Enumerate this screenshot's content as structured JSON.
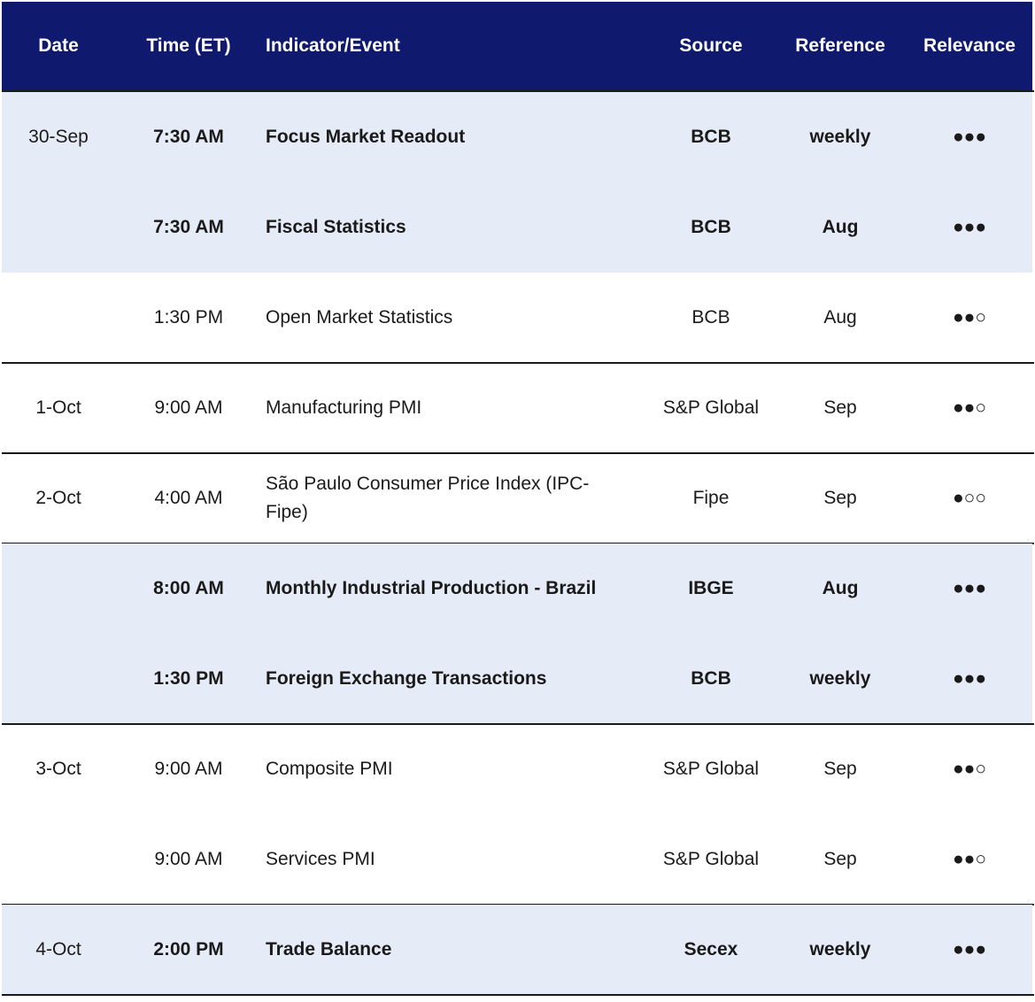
{
  "header": [
    "Date",
    "Time (ET)",
    "Indicator/Event",
    "Source",
    "Reference",
    "Relevance"
  ],
  "rows": [
    [
      "30-Sep",
      "7:30 AM",
      "Focus Market Readout",
      "BCB",
      "weekly",
      "●●●"
    ],
    [
      null,
      "7:30 AM",
      "Fiscal Statistics",
      "BCB",
      "Aug",
      "●●●"
    ],
    [
      null,
      "1:30 PM",
      "Open Market Statistics",
      "BCB",
      "Aug",
      "●●○"
    ],
    [
      "1-Oct",
      "9:00 AM",
      "Manufacturing PMI",
      "S&P Global",
      "Sep",
      "●●○"
    ],
    [
      "2-Oct",
      "4:00 AM",
      "São Paulo Consumer Price Index (IPC-Fipe)",
      "Fipe",
      "Sep",
      "●○○"
    ],
    [
      null,
      "8:00 AM",
      "Monthly Industrial Production - Brazil",
      "IBGE",
      "Aug",
      "●●●"
    ],
    [
      null,
      "1:30 PM",
      "Foreign Exchange Transactions",
      "BCB",
      "weekly",
      "●●●"
    ],
    [
      "3-Oct",
      "9:00 AM",
      "Composite PMI",
      "S&P Global",
      "Sep",
      "●●○"
    ],
    [
      null,
      "9:00 AM",
      "Services PMI",
      "S&P Global",
      "Sep",
      "●●○"
    ],
    [
      "4-Oct",
      "2:00 PM",
      "Trade Balance",
      "Secex",
      "weekly",
      "●●●"
    ]
  ]
}
